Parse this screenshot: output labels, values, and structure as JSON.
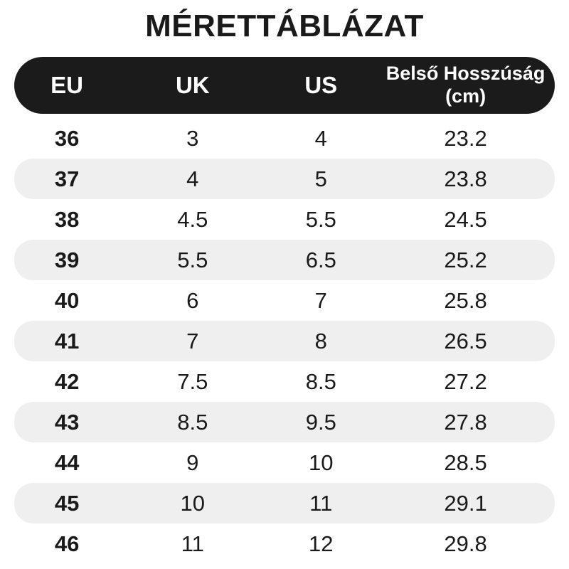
{
  "page": {
    "title": "MÉRETTÁBLÁZAT"
  },
  "chart_data": {
    "type": "table",
    "title": "MÉRETTÁBLÁZAT",
    "columns": [
      "EU",
      "UK",
      "US",
      "Belső Hosszúság (cm)"
    ],
    "rows": [
      [
        "36",
        "3",
        "4",
        "23.2"
      ],
      [
        "37",
        "4",
        "5",
        "23.8"
      ],
      [
        "38",
        "4.5",
        "5.5",
        "24.5"
      ],
      [
        "39",
        "5.5",
        "6.5",
        "25.2"
      ],
      [
        "40",
        "6",
        "7",
        "25.8"
      ],
      [
        "41",
        "7",
        "8",
        "26.5"
      ],
      [
        "42",
        "7.5",
        "8.5",
        "27.2"
      ],
      [
        "43",
        "8.5",
        "9.5",
        "27.8"
      ],
      [
        "44",
        "9",
        "10",
        "28.5"
      ],
      [
        "45",
        "10",
        "11",
        "29.1"
      ],
      [
        "46",
        "11",
        "12",
        "29.8"
      ]
    ],
    "layout": {
      "header_style": "dark-rounded-pill",
      "zebra_striping": "alternate-rows-gray-rounded",
      "first_column_bold": true
    }
  },
  "colors": {
    "page_bg": "#ffffff",
    "header_bg": "#1b1b1b",
    "header_text": "#ffffff",
    "row_alt_bg": "#efefef",
    "text": "#1a1a1a"
  }
}
